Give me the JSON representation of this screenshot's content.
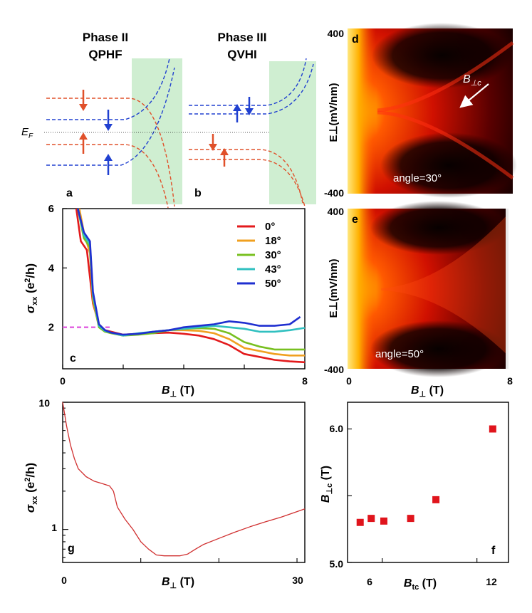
{
  "panel_a": {
    "title1": "Phase II",
    "title2": "QPHF",
    "letter": "a",
    "ef_main": "E",
    "ef_sub": "F",
    "colors": {
      "spin_up_red": "#e0502a",
      "spin_down_blue": "#2040d0",
      "edge_region": "#cfeed1"
    }
  },
  "panel_b": {
    "title1": "Phase III",
    "title2": "QVHI",
    "letter": "b"
  },
  "panel_c": {
    "letter": "c",
    "legend": [
      "0°",
      "18°",
      "30°",
      "43°",
      "50°"
    ],
    "x_label_main": "B",
    "x_label_sub": "⊥",
    "x_label_unit": " (T)",
    "y_label_main": "σ",
    "y_label_sub": "xx",
    "y_label_unit": " (e",
    "y_label_sup": "2",
    "y_label_end": "/h)"
  },
  "panel_d": {
    "letter": "d",
    "annotation": "angle=30°",
    "arrow_label_main": "B",
    "arrow_label_sub": "⊥c",
    "y_label": "E⊥(mV/nm)",
    "y_top": "400",
    "y_bottom": "-400"
  },
  "panel_e": {
    "letter": "e",
    "annotation": "angle=50°",
    "y_label": "E⊥(mV/nm)",
    "y_top": "400",
    "y_bottom": "-400",
    "x_ticks": [
      "0",
      "8"
    ],
    "x_label_main": "B",
    "x_label_sub": "⊥",
    "x_label_unit": " (T)"
  },
  "panel_f": {
    "letter": "f",
    "x_label_main": "B",
    "x_label_sub": "tc",
    "x_label_unit": " (T)",
    "y_label_main": "B",
    "y_label_sub": "⊥c",
    "y_label_unit": " (T)",
    "y_ticks": [
      "6.0",
      "5.0"
    ],
    "x_ticks": [
      "6",
      "12"
    ]
  },
  "panel_g": {
    "letter": "g",
    "x_label_main": "B",
    "x_label_sub": "⊥",
    "x_label_unit": " (T)",
    "y_label_main": "σ",
    "y_label_sub": "xx",
    "y_label_unit": " (e",
    "y_label_sup": "2",
    "y_label_end": "/h)",
    "x_ticks": [
      "0",
      "30"
    ],
    "y_ticks": [
      "10",
      "1"
    ]
  },
  "chart_data": [
    {
      "id": "c",
      "type": "line",
      "xlabel": "B⊥ (T)",
      "ylabel": "σxx (e2/h)",
      "xlim": [
        0,
        8
      ],
      "ylim": [
        0.6,
        6
      ],
      "x_ticks": [
        "0",
        "8"
      ],
      "y_ticks": [
        "2",
        "4",
        "6"
      ],
      "reference_line": {
        "y": 2,
        "color": "#e05ce0",
        "style": "dashed"
      },
      "series": [
        {
          "name": "0°",
          "color": "#e31a1c",
          "x": [
            0.45,
            0.6,
            0.8,
            1.0,
            1.2,
            1.4,
            1.6,
            2.0,
            2.5,
            3.0,
            3.5,
            4.0,
            4.5,
            5.0,
            5.5,
            6.0,
            6.5,
            7.0,
            7.5,
            8.0
          ],
          "y": [
            6.0,
            4.9,
            4.6,
            2.8,
            2.1,
            1.9,
            1.85,
            1.75,
            1.78,
            1.8,
            1.82,
            1.78,
            1.72,
            1.6,
            1.4,
            1.1,
            1.0,
            0.9,
            0.85,
            0.82
          ]
        },
        {
          "name": "18°",
          "color": "#f0a020",
          "x": [
            0.55,
            0.7,
            0.9,
            1.0,
            1.2,
            1.4,
            1.6,
            2.0,
            2.5,
            3.0,
            3.5,
            4.0,
            4.5,
            5.0,
            5.5,
            6.0,
            6.5,
            7.0,
            7.5,
            8.0
          ],
          "y": [
            6.0,
            5.2,
            4.5,
            2.9,
            2.0,
            1.85,
            1.8,
            1.72,
            1.78,
            1.85,
            1.9,
            1.9,
            1.88,
            1.8,
            1.6,
            1.3,
            1.2,
            1.1,
            1.05,
            1.05
          ]
        },
        {
          "name": "30°",
          "color": "#78c020",
          "x": [
            0.5,
            0.7,
            0.9,
            1.0,
            1.2,
            1.4,
            1.6,
            2.0,
            2.5,
            3.0,
            3.5,
            4.0,
            4.5,
            5.0,
            5.5,
            6.0,
            6.5,
            7.0,
            7.5,
            8.0
          ],
          "y": [
            6.0,
            5.0,
            4.7,
            3.0,
            2.0,
            1.85,
            1.8,
            1.72,
            1.75,
            1.8,
            1.9,
            1.95,
            1.97,
            1.95,
            1.8,
            1.5,
            1.35,
            1.25,
            1.25,
            1.25
          ]
        },
        {
          "name": "43°",
          "color": "#30c0c0",
          "x": [
            0.5,
            0.7,
            0.9,
            1.0,
            1.2,
            1.4,
            1.6,
            2.0,
            2.5,
            3.0,
            3.5,
            4.0,
            4.5,
            5.0,
            5.5,
            6.0,
            6.5,
            7.0,
            7.5,
            8.0
          ],
          "y": [
            6.0,
            5.1,
            4.8,
            3.1,
            2.05,
            1.88,
            1.82,
            1.72,
            1.8,
            1.85,
            1.9,
            1.95,
            2.0,
            2.05,
            2.0,
            1.95,
            1.85,
            1.85,
            1.9,
            1.98
          ]
        },
        {
          "name": "50°",
          "color": "#1f2fd0",
          "x": [
            0.5,
            0.7,
            0.9,
            1.0,
            1.2,
            1.4,
            1.6,
            2.0,
            2.5,
            3.0,
            3.5,
            4.0,
            4.5,
            5.0,
            5.5,
            6.0,
            6.5,
            7.0,
            7.5,
            7.85
          ],
          "y": [
            6.0,
            5.2,
            4.9,
            3.2,
            2.1,
            1.9,
            1.82,
            1.75,
            1.78,
            1.85,
            1.9,
            2.0,
            2.05,
            2.1,
            2.2,
            2.15,
            2.05,
            2.05,
            2.1,
            2.35
          ]
        }
      ]
    },
    {
      "id": "g",
      "type": "line",
      "xlabel": "B⊥ (T)",
      "ylabel": "σxx (e2/h)",
      "xlim": [
        0,
        31
      ],
      "ylim": [
        0.55,
        10
      ],
      "yscale": "log",
      "series": [
        {
          "name": "σxx",
          "color": "#d03030",
          "x": [
            0,
            0.5,
            1,
            1.5,
            2,
            3,
            4,
            5,
            6,
            6.5,
            7,
            8,
            9,
            10,
            11,
            12,
            13,
            14,
            15,
            16,
            17,
            18,
            20,
            22,
            24,
            26,
            28,
            30,
            31
          ],
          "y": [
            10,
            6.5,
            4.6,
            3.6,
            3.0,
            2.6,
            2.4,
            2.3,
            2.2,
            2.0,
            1.5,
            1.2,
            1.0,
            0.8,
            0.7,
            0.63,
            0.62,
            0.62,
            0.62,
            0.64,
            0.7,
            0.76,
            0.85,
            0.95,
            1.05,
            1.15,
            1.25,
            1.38,
            1.45
          ]
        }
      ]
    },
    {
      "id": "f",
      "type": "scatter",
      "xlabel": "Btc (T)",
      "ylabel": "B⊥c (T)",
      "xlim": [
        3.8,
        14
      ],
      "ylim": [
        5.0,
        6.2
      ],
      "series": [
        {
          "name": "points",
          "color": "#e0141c",
          "x": [
            4.6,
            5.3,
            6.1,
            7.8,
            9.4,
            13.0
          ],
          "y": [
            5.3,
            5.33,
            5.31,
            5.33,
            5.47,
            6.0
          ]
        }
      ]
    }
  ]
}
